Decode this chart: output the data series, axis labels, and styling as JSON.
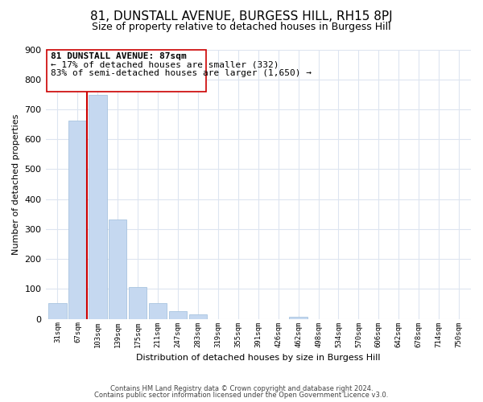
{
  "title": "81, DUNSTALL AVENUE, BURGESS HILL, RH15 8PJ",
  "subtitle": "Size of property relative to detached houses in Burgess Hill",
  "xlabel": "Distribution of detached houses by size in Burgess Hill",
  "ylabel": "Number of detached properties",
  "bar_labels": [
    "31sqm",
    "67sqm",
    "103sqm",
    "139sqm",
    "175sqm",
    "211sqm",
    "247sqm",
    "283sqm",
    "319sqm",
    "355sqm",
    "391sqm",
    "426sqm",
    "462sqm",
    "498sqm",
    "534sqm",
    "570sqm",
    "606sqm",
    "642sqm",
    "678sqm",
    "714sqm",
    "750sqm"
  ],
  "bar_values": [
    52,
    663,
    747,
    332,
    107,
    52,
    27,
    15,
    0,
    0,
    0,
    0,
    6,
    0,
    0,
    0,
    0,
    0,
    0,
    0,
    0
  ],
  "bar_color": "#c5d8f0",
  "bar_edge_color": "#a8c4e0",
  "property_line_color": "#cc0000",
  "annotation_title": "81 DUNSTALL AVENUE: 87sqm",
  "annotation_line1": "← 17% of detached houses are smaller (332)",
  "annotation_line2": "83% of semi-detached houses are larger (1,650) →",
  "ylim": [
    0,
    900
  ],
  "yticks": [
    0,
    100,
    200,
    300,
    400,
    500,
    600,
    700,
    800,
    900
  ],
  "footer_line1": "Contains HM Land Registry data © Crown copyright and database right 2024.",
  "footer_line2": "Contains public sector information licensed under the Open Government Licence v3.0.",
  "background_color": "#ffffff",
  "grid_color": "#dde5f0",
  "title_fontsize": 11,
  "subtitle_fontsize": 9
}
